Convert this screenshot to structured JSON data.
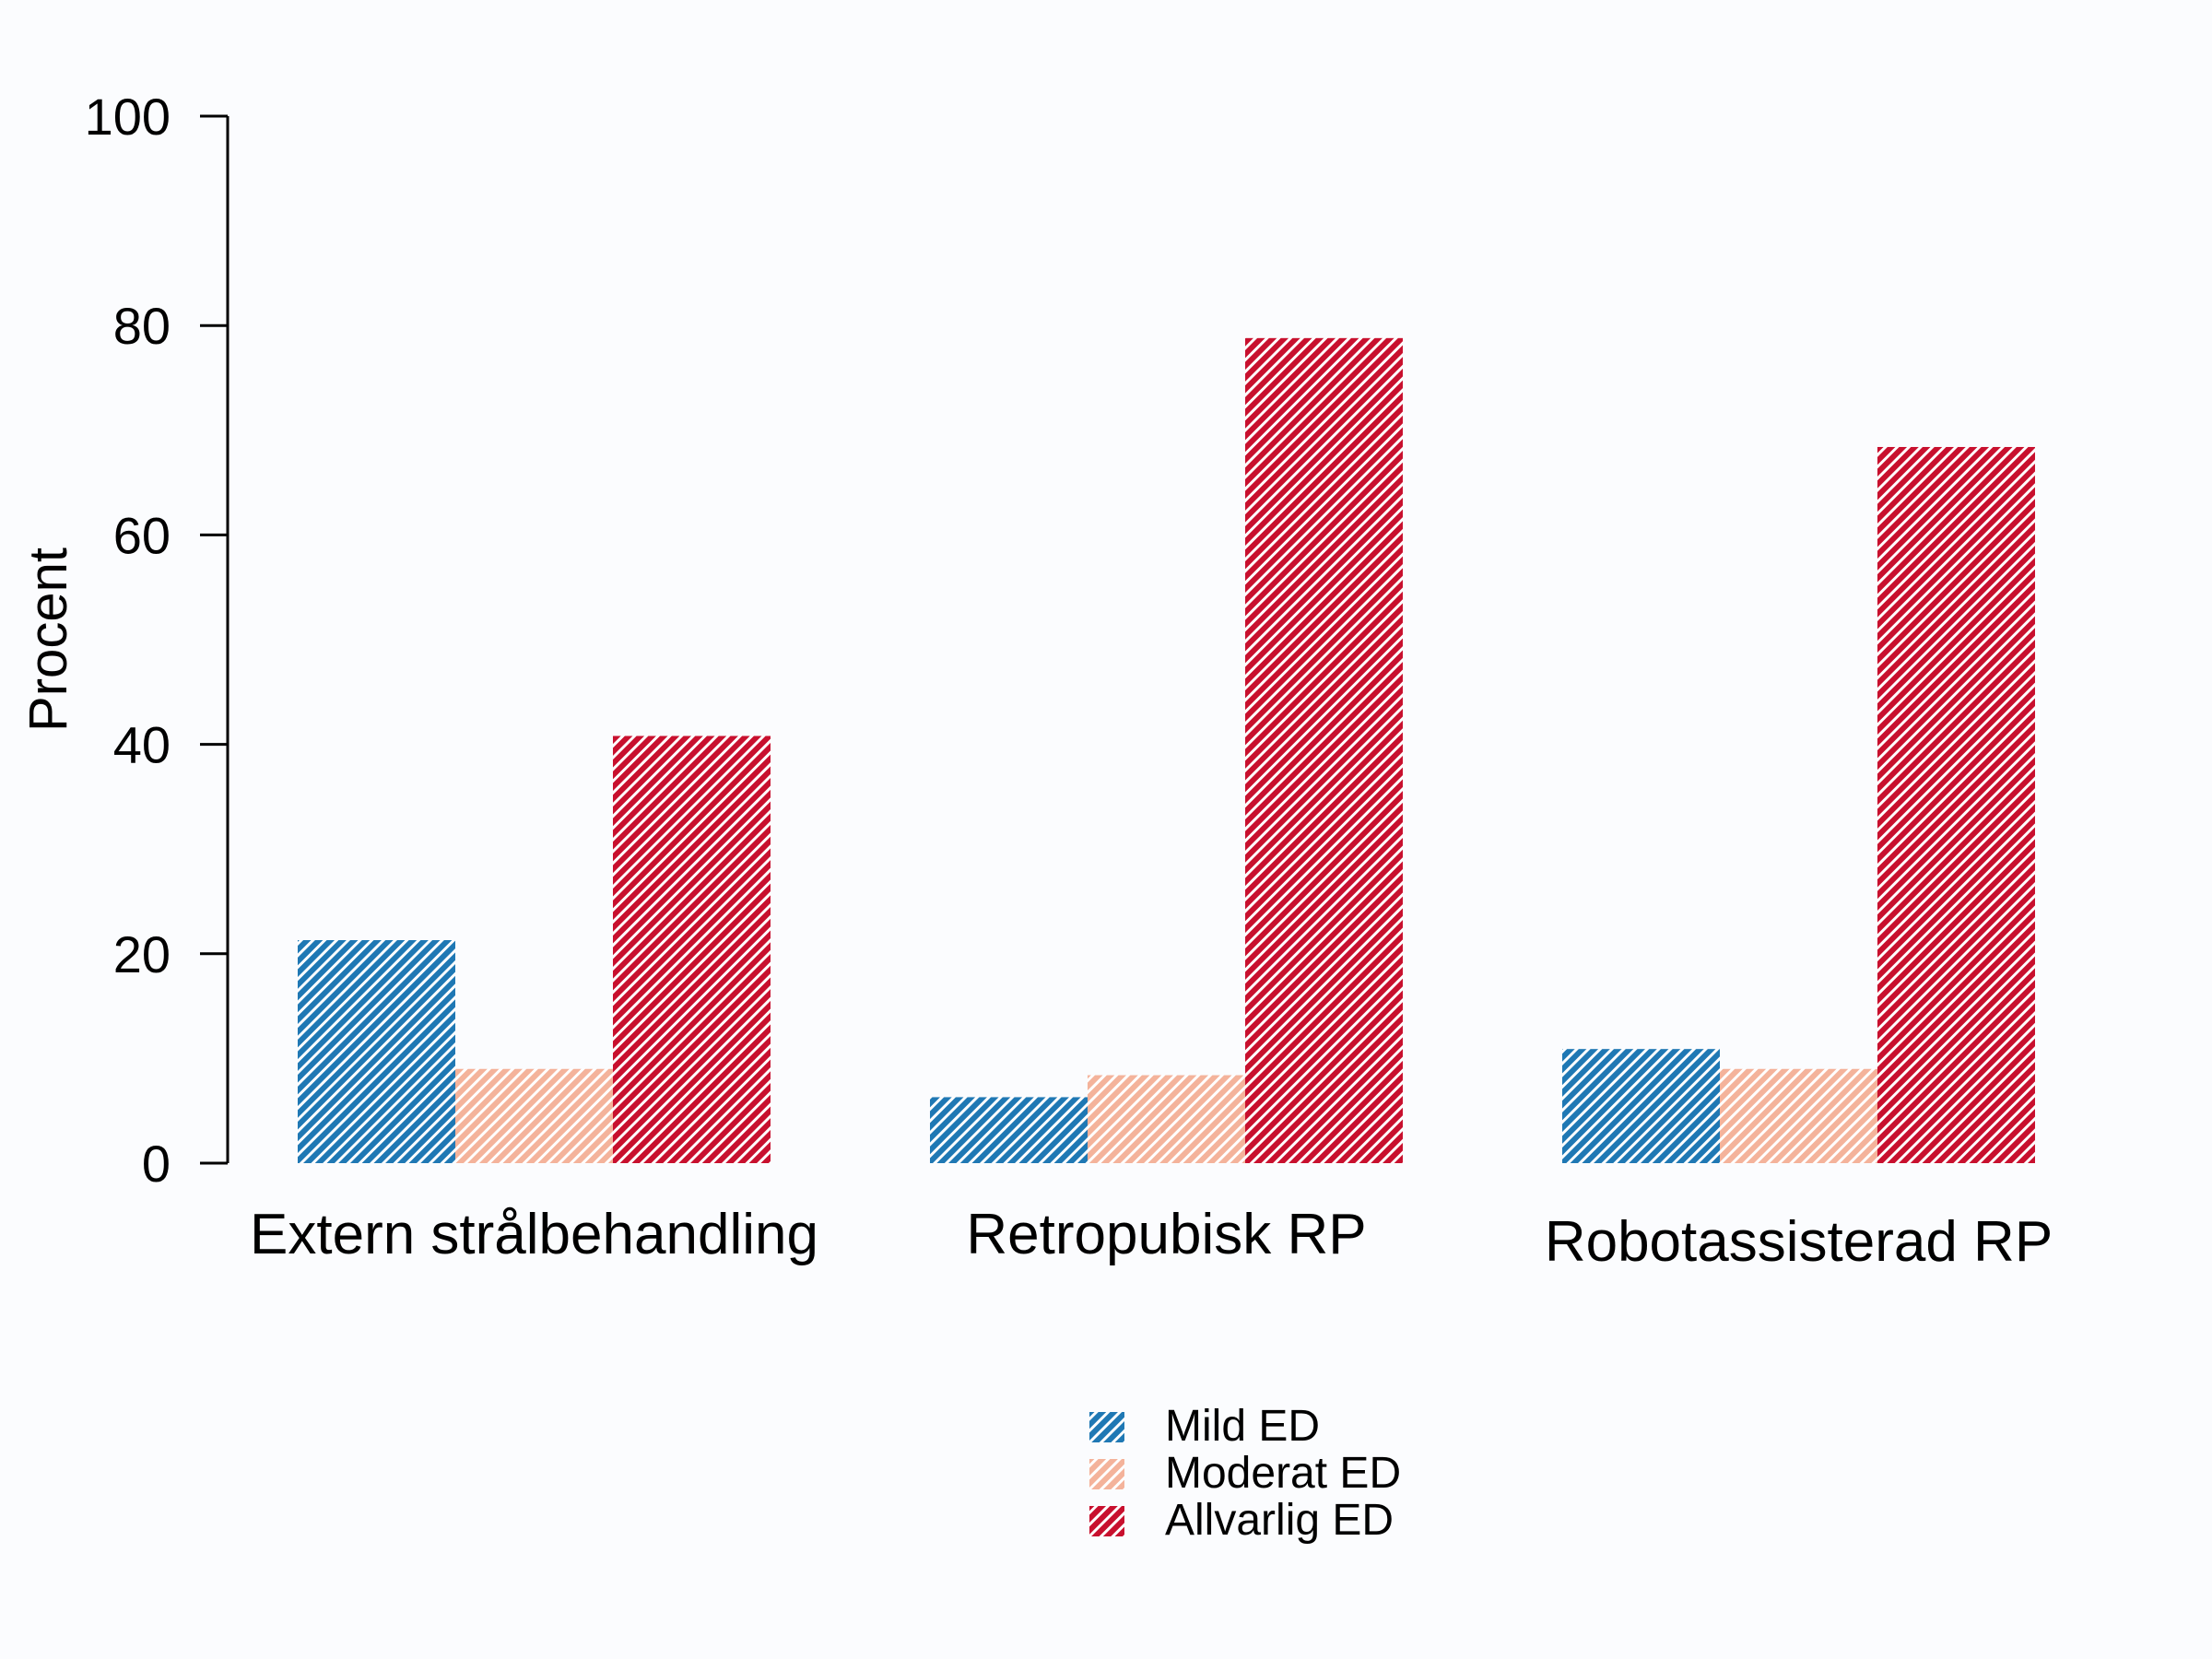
{
  "chart_data": {
    "type": "bar",
    "title": "",
    "xlabel": "",
    "ylabel": "Procent",
    "ylim": [
      0,
      100
    ],
    "yticks": [
      0,
      20,
      40,
      60,
      80,
      100
    ],
    "grid": false,
    "legend_position": "bottom-center",
    "categories": [
      "Extern strålbehandling",
      "Retropubisk RP",
      "Robotassisterad RP"
    ],
    "series": [
      {
        "name": "Mild ED",
        "color": "#1f78b4",
        "values": [
          21.3,
          6.3,
          10.9
        ]
      },
      {
        "name": "Moderat ED",
        "color": "#f4b39b",
        "values": [
          9.0,
          8.4,
          9.0
        ]
      },
      {
        "name": "Allvarlig ED",
        "color": "#c8102e",
        "values": [
          40.8,
          78.8,
          68.4
        ]
      }
    ]
  }
}
